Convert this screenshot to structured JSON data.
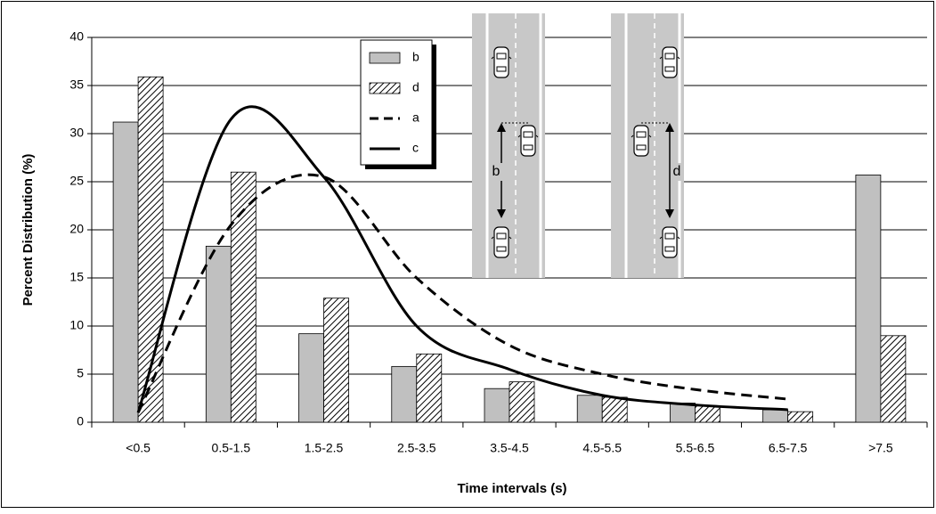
{
  "chart_data": {
    "type": "bar",
    "x_label": "Time intervals (s)",
    "y_label": "Percent Distribution (%)",
    "categories": [
      "<0.5",
      "0.5-1.5",
      "1.5-2.5",
      "2.5-3.5",
      "3.5-4.5",
      "4.5-5.5",
      "5.5-6.5",
      "6.5-7.5",
      ">7.5"
    ],
    "series": [
      {
        "name": "b",
        "type": "bar",
        "style": "solid",
        "color": "#c0c0c0",
        "values": [
          31.2,
          18.3,
          9.2,
          5.8,
          3.5,
          2.8,
          2.0,
          1.3,
          25.7
        ]
      },
      {
        "name": "d",
        "type": "bar",
        "style": "hatched",
        "color": "#000000",
        "values": [
          35.9,
          26.0,
          12.9,
          7.1,
          4.2,
          2.6,
          1.7,
          1.1,
          9.0
        ]
      },
      {
        "name": "a",
        "type": "line",
        "style": "dashed",
        "color": "#000000",
        "values": [
          1.0,
          20.5,
          25.5,
          15.0,
          8.0,
          5.0,
          3.4,
          2.4,
          null
        ]
      },
      {
        "name": "c",
        "type": "line",
        "style": "solid",
        "color": "#000000",
        "values": [
          1.0,
          31.5,
          25.5,
          10.0,
          5.5,
          2.8,
          1.8,
          1.3,
          null
        ]
      }
    ],
    "ylim": [
      0,
      40
    ],
    "yticks": [
      0,
      5,
      10,
      15,
      20,
      25,
      30,
      35,
      40
    ],
    "grid": true,
    "legend": "top-center"
  }
}
